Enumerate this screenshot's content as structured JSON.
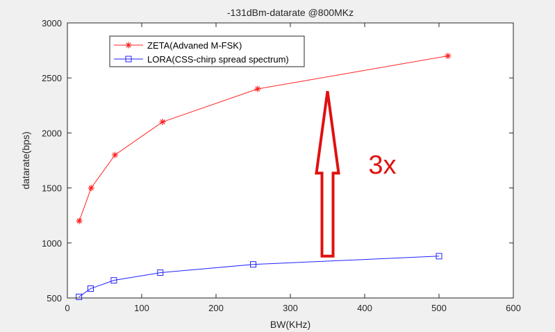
{
  "chart_data": {
    "type": "line",
    "title": "-131dBm-datarate @800MKz",
    "xlabel": "BW(KHz)",
    "ylabel": "datarate(bps)",
    "xlim": [
      0,
      600
    ],
    "ylim": [
      500,
      3000
    ],
    "xticks": [
      0,
      100,
      200,
      300,
      400,
      500,
      600
    ],
    "yticks": [
      500,
      1000,
      1500,
      2000,
      2500,
      3000
    ],
    "grid": false,
    "legend_position": "top-left",
    "series": [
      {
        "name": "ZETA(Advaned M-FSK)",
        "color": "#ff2020",
        "marker": "asterisk",
        "x": [
          16,
          32,
          64,
          128,
          256,
          512
        ],
        "y": [
          1200,
          1500,
          1800,
          2100,
          2400,
          2700
        ]
      },
      {
        "name": "LORA(CSS-chirp spread spectrum)",
        "color": "#2020ff",
        "marker": "square",
        "x": [
          15.6,
          31.25,
          62.5,
          125,
          250,
          500
        ],
        "y": [
          510,
          585,
          660,
          730,
          805,
          880
        ]
      }
    ],
    "annotation": {
      "text": "3x",
      "color": "#e01010",
      "arrow_x": 350,
      "arrow_from_y": 880,
      "arrow_to_y": 2380,
      "text_at_x": 405,
      "text_at_y": 1630
    }
  }
}
